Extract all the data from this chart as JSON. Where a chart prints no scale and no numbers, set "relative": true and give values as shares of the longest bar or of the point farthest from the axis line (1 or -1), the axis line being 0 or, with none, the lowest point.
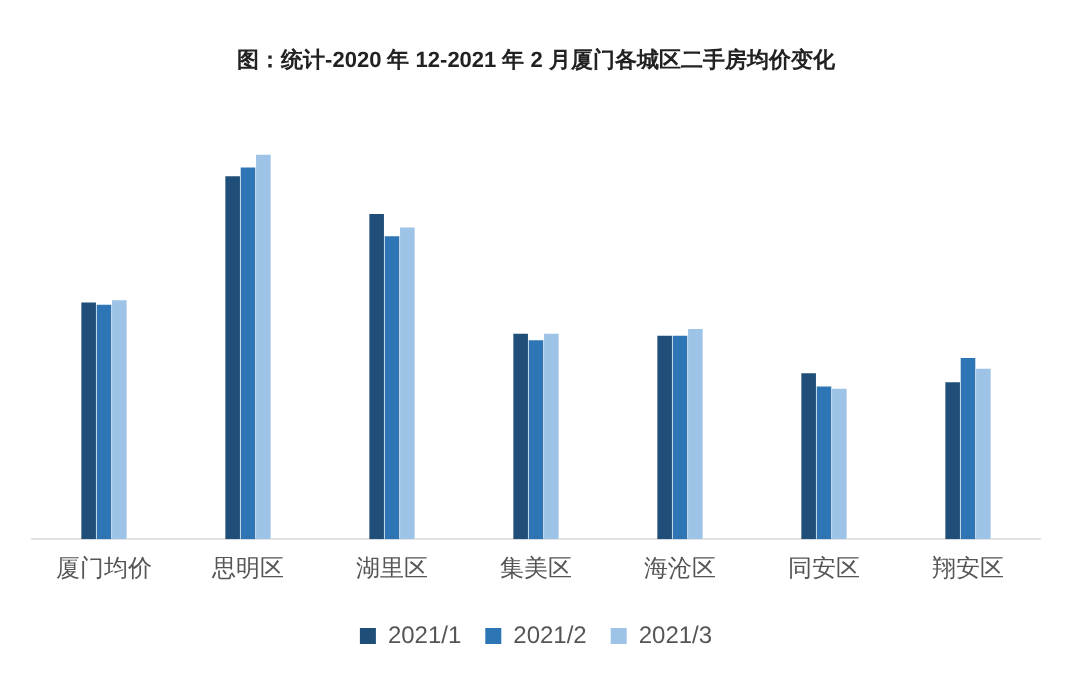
{
  "chart_data": {
    "type": "bar",
    "title": "图：统计-2020 年 12-2021 年 2 月厦门各城区二手房均价变化",
    "categories": [
      "厦门均价",
      "思明区",
      "湖里区",
      "集美区",
      "海沧区",
      "同安区",
      "翔安区"
    ],
    "relative": true,
    "series": [
      {
        "name": "2021/1",
        "color": "#1f4e79",
        "values": [
          0.615,
          0.943,
          0.845,
          0.534,
          0.529,
          0.431,
          0.408
        ]
      },
      {
        "name": "2021/2",
        "color": "#2e75b6",
        "values": [
          0.609,
          0.966,
          0.787,
          0.517,
          0.529,
          0.397,
          0.471
        ]
      },
      {
        "name": "2021/3",
        "color": "#9dc3e6",
        "values": [
          0.621,
          1,
          0.81,
          0.534,
          0.546,
          0.391,
          0.443
        ]
      }
    ],
    "legend": "bottom",
    "grid": false
  }
}
